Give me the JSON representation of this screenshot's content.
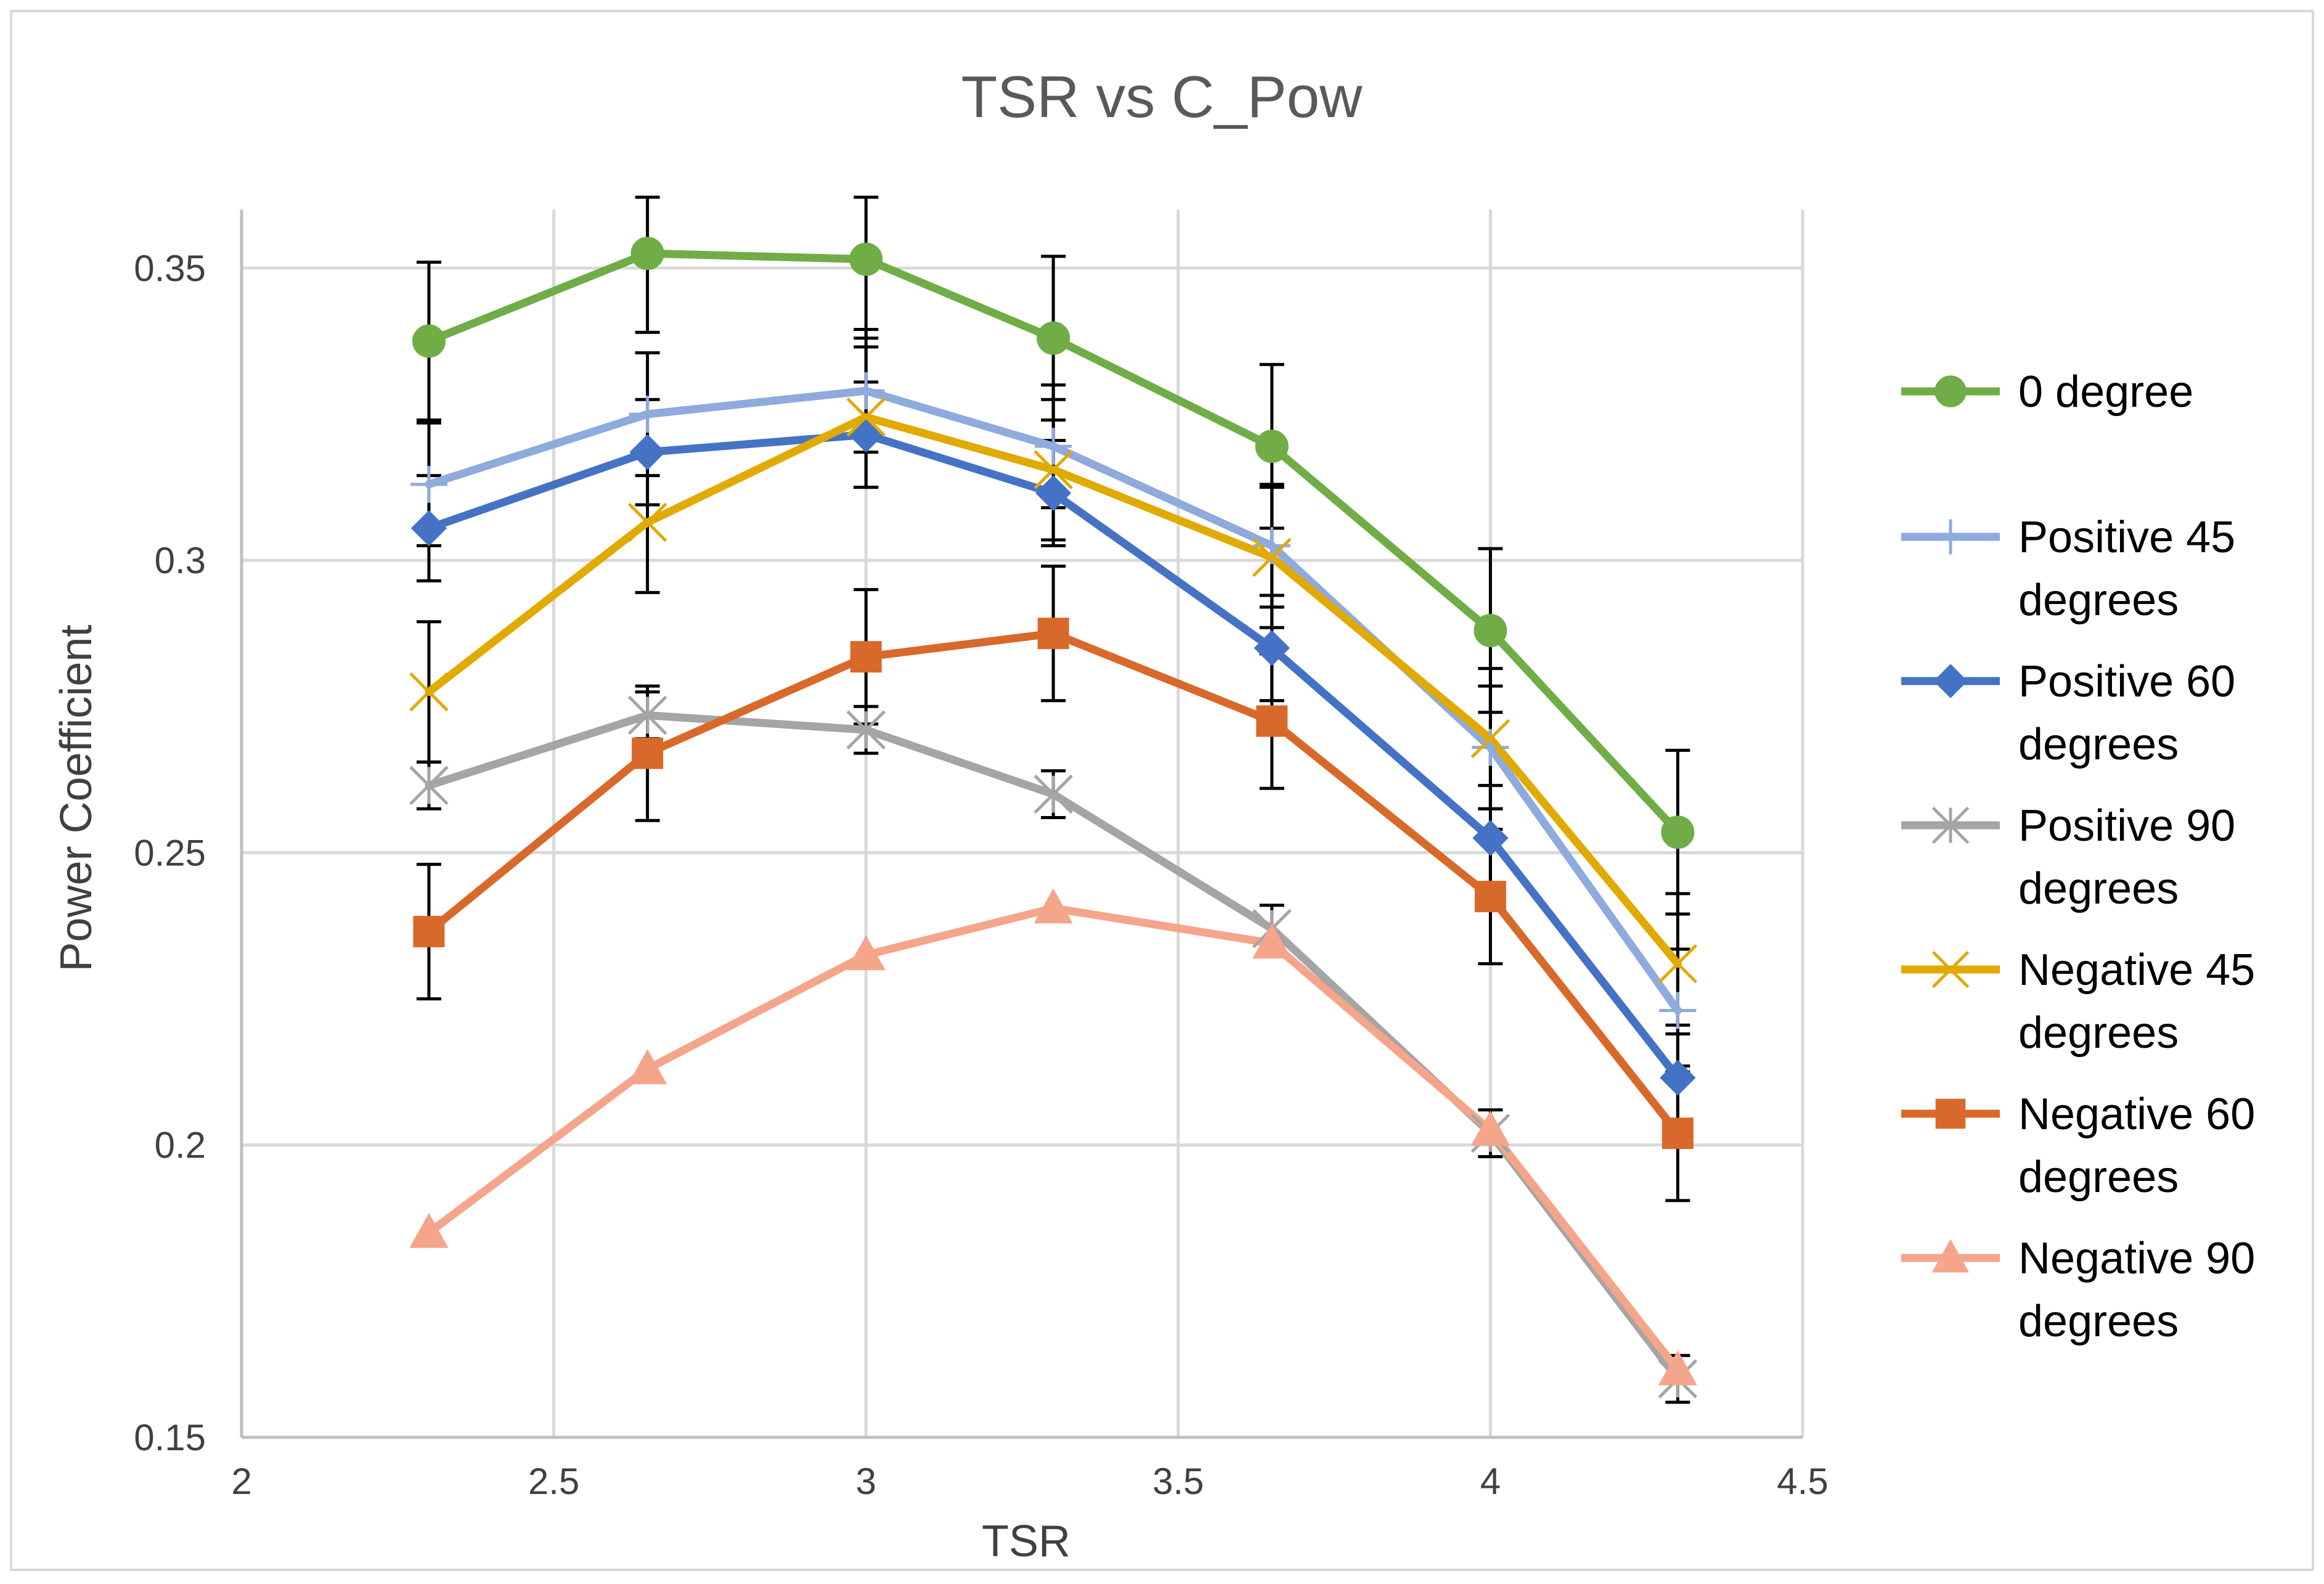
{
  "chart_data": {
    "type": "line",
    "title": "TSR vs C_Pow",
    "xlabel": "TSR",
    "ylabel": "Power Coefficient",
    "xlim": [
      2,
      4.5
    ],
    "ylim": [
      0.15,
      0.36
    ],
    "xticks": [
      2,
      2.5,
      3,
      3.5,
      4,
      4.5
    ],
    "xtick_labels": [
      "2",
      "2.5",
      "3",
      "3.5",
      "4",
      "4.5"
    ],
    "yticks": [
      0.15,
      0.2,
      0.25,
      0.3,
      0.35
    ],
    "ytick_labels": [
      "0.15",
      "0.2",
      "0.25",
      "0.3",
      "0.35"
    ],
    "grid": true,
    "legend_position": "right",
    "x": [
      2.3,
      2.65,
      3.0,
      3.3,
      3.65,
      4.0,
      4.3
    ],
    "series": [
      {
        "name": "0 degree",
        "legend_lines": [
          "0 degree"
        ],
        "color": "#70AD47",
        "marker": "circle",
        "values": [
          0.3375,
          0.3525,
          0.3515,
          0.338,
          0.3195,
          0.288,
          0.2535
        ],
        "error": [
          0.0135,
          0.0135,
          0.0135,
          0.014,
          0.014,
          0.014,
          0.014
        ]
      },
      {
        "name": "Positive 45 degrees",
        "legend_lines": [
          "Positive 45",
          "degrees"
        ],
        "color": "#8FAADC",
        "marker": "plus",
        "values": [
          0.313,
          0.325,
          0.329,
          0.3195,
          0.3025,
          0.268,
          0.223
        ],
        "error": [
          0.0105,
          0.0105,
          0.0105,
          0.0105,
          0.0105,
          0.0105,
          0.0105
        ]
      },
      {
        "name": "Positive 60 degrees",
        "legend_lines": [
          "Positive 60",
          "degrees"
        ],
        "color": "#4472C4",
        "marker": "diamond",
        "values": [
          0.3055,
          0.3185,
          0.3215,
          0.3115,
          0.285,
          0.2525,
          0.2115
        ],
        "error": [
          0.009,
          0.009,
          0.009,
          0.009,
          0.009,
          0.009,
          0.009
        ]
      },
      {
        "name": "Positive 90 degrees",
        "legend_lines": [
          "Positive 90",
          "degrees"
        ],
        "color": "#A5A5A5",
        "marker": "asterisk",
        "values": [
          0.2615,
          0.2735,
          0.271,
          0.26,
          0.237,
          0.202,
          0.16
        ],
        "error": [
          0.004,
          0.004,
          0.004,
          0.004,
          0.004,
          0.004,
          0.004
        ]
      },
      {
        "name": "Negative 45 degrees",
        "legend_lines": [
          "Negative 45",
          "degrees"
        ],
        "color": "#E1AA00",
        "marker": "x",
        "values": [
          0.2775,
          0.3065,
          0.3245,
          0.3155,
          0.3005,
          0.2695,
          0.231
        ],
        "error": [
          0.012,
          0.012,
          0.012,
          0.012,
          0.012,
          0.012,
          0.012
        ]
      },
      {
        "name": "Negative 60 degrees",
        "legend_lines": [
          "Negative 60",
          "degrees"
        ],
        "color": "#D9692A",
        "marker": "square",
        "values": [
          0.2365,
          0.267,
          0.2835,
          0.2875,
          0.2725,
          0.2425,
          0.202
        ],
        "error": [
          0.0115,
          0.0115,
          0.0115,
          0.0115,
          0.0115,
          0.0115,
          0.0115
        ]
      },
      {
        "name": "Negative 90 degrees",
        "legend_lines": [
          "Negative 90",
          "degrees"
        ],
        "color": "#F4A58A",
        "marker": "triangle",
        "values": [
          0.185,
          0.213,
          0.2325,
          0.2405,
          0.2345,
          0.2025,
          0.1615
        ],
        "error": null
      }
    ]
  }
}
